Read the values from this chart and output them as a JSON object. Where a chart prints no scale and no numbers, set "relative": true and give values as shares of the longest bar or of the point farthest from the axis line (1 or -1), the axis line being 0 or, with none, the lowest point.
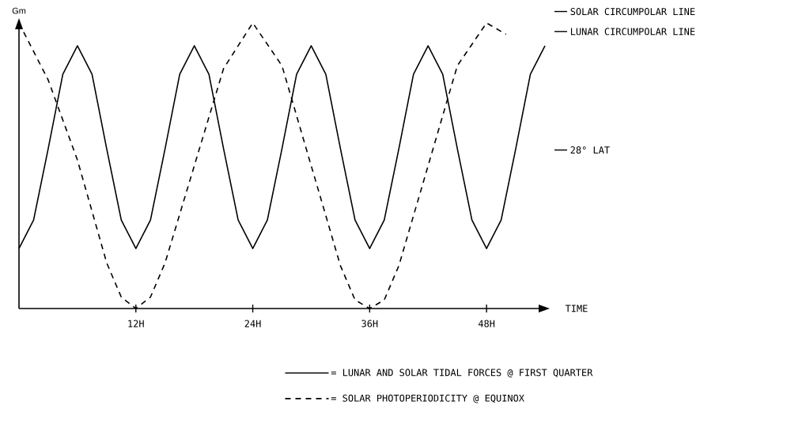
{
  "chart_data": {
    "type": "line",
    "relative": true,
    "xlabel": "TIME",
    "ylabel": "Gm",
    "xlim": [
      0,
      54
    ],
    "xticks": [
      {
        "value": 12,
        "label": "12H"
      },
      {
        "value": 24,
        "label": "24H"
      },
      {
        "value": 36,
        "label": "36H"
      },
      {
        "value": 48,
        "label": "48H"
      }
    ],
    "grid": false,
    "marker": "none",
    "legend": "bottom",
    "annotations": [
      "SOLAR CIRCUMPOLAR LINE",
      "LUNAR CIRCUMPOLAR LINE",
      "28° LAT"
    ],
    "series": [
      {
        "name": "= LUNAR AND SOLAR TIDAL FORCES @ FIRST QUARTER",
        "color": "#000000",
        "line_style": "solid",
        "x": [
          0,
          1.5,
          3,
          4.5,
          6,
          7.5,
          9,
          10.5,
          12,
          13.5,
          15,
          16.5,
          18,
          19.5,
          21,
          22.5,
          24,
          25.5,
          27,
          28.5,
          30,
          31.5,
          33,
          34.5,
          36,
          37.5,
          39,
          40.5,
          42,
          43.5,
          45,
          46.5,
          48,
          49.5,
          51,
          52.5,
          54
        ],
        "values": [
          0.21,
          0.31,
          0.56,
          0.82,
          0.92,
          0.82,
          0.56,
          0.31,
          0.21,
          0.31,
          0.56,
          0.82,
          0.92,
          0.82,
          0.56,
          0.31,
          0.21,
          0.31,
          0.56,
          0.82,
          0.92,
          0.82,
          0.56,
          0.31,
          0.21,
          0.31,
          0.56,
          0.82,
          0.92,
          0.82,
          0.56,
          0.31,
          0.21,
          0.31,
          0.56,
          0.82,
          0.92
        ]
      },
      {
        "name": "= SOLAR PHOTOPERIODICITY @ EQUINOX",
        "color": "#000000",
        "line_style": "dashed",
        "x": [
          0,
          3,
          6,
          9,
          10.5,
          12,
          13.5,
          15,
          18,
          21,
          24,
          27,
          30,
          33,
          34.5,
          36,
          37.5,
          39,
          42,
          45,
          48,
          50
        ],
        "values": [
          1.0,
          0.8,
          0.52,
          0.16,
          0.04,
          0,
          0.04,
          0.16,
          0.5,
          0.84,
          1.0,
          0.85,
          0.5,
          0.15,
          0.03,
          0,
          0.03,
          0.15,
          0.5,
          0.85,
          1.0,
          0.96
        ]
      }
    ]
  }
}
